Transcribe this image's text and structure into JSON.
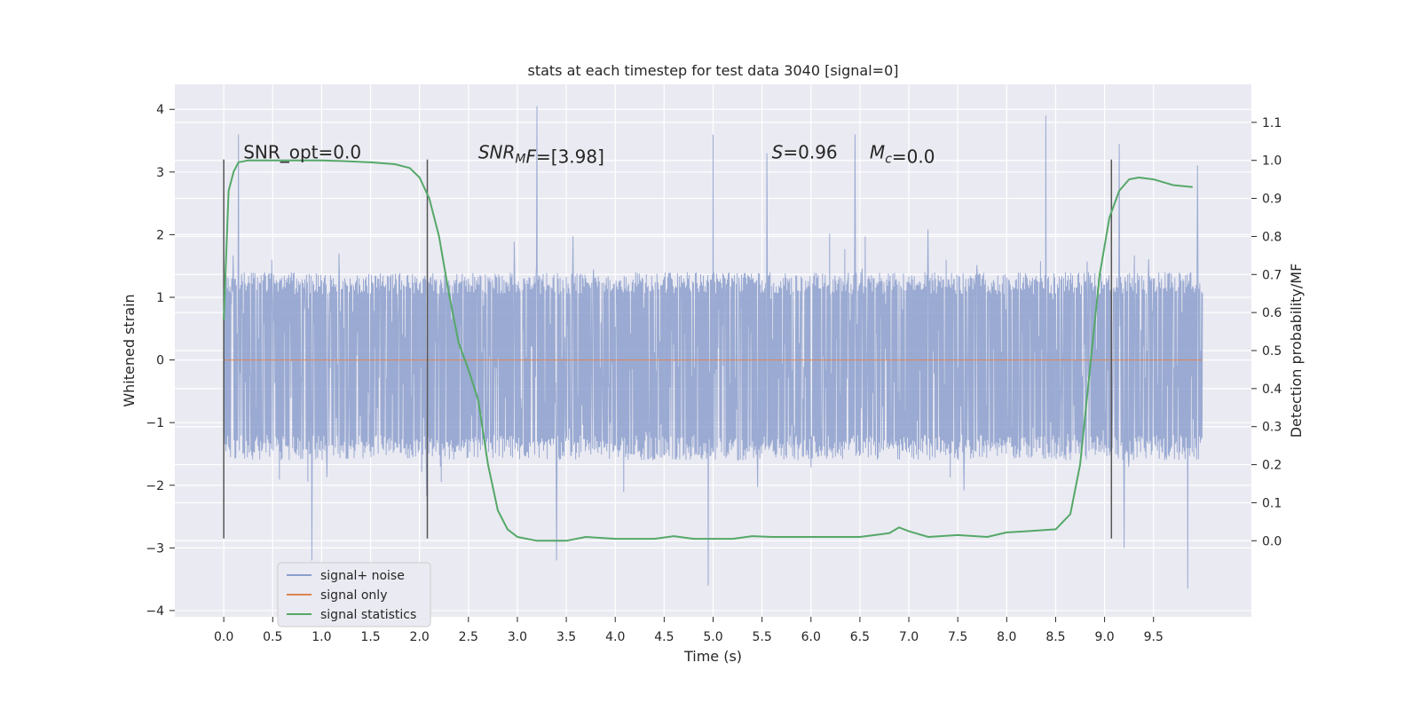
{
  "chart_data": {
    "type": "line",
    "title": "stats at each timestep for test data 3040 [signal=0]",
    "xlabel": "Time (s)",
    "ylabel": "Whitened strain",
    "y2label": "Detection probability/MF",
    "xlim": [
      -0.5,
      10.5
    ],
    "ylim": [
      -4.1,
      4.4
    ],
    "y2lim": [
      -0.2,
      1.2
    ],
    "x_ticks": [
      0.0,
      0.5,
      1.0,
      1.5,
      2.0,
      2.5,
      3.0,
      3.5,
      4.0,
      4.5,
      5.0,
      5.5,
      6.0,
      6.5,
      7.0,
      7.5,
      8.0,
      8.5,
      9.0,
      9.5
    ],
    "x_tick_labels": [
      "0.0",
      "0.5",
      "1.0",
      "1.5",
      "2.0",
      "2.5",
      "3.0",
      "3.5",
      "4.0",
      "4.5",
      "5.0",
      "5.5",
      "6.0",
      "6.5",
      "7.0",
      "7.5",
      "8.0",
      "8.5",
      "9.0",
      "9.5"
    ],
    "y_ticks": [
      4,
      3,
      2,
      1,
      0,
      -1,
      -2,
      -3,
      -4
    ],
    "y_tick_labels": [
      "4",
      "3",
      "2",
      "1",
      "0",
      "−1",
      "−2",
      "−3",
      "−4"
    ],
    "y2_ticks": [
      1.1,
      1.0,
      0.9,
      0.8,
      0.7,
      0.6,
      0.5,
      0.4,
      0.3,
      0.2,
      0.1,
      0.0
    ],
    "y2_tick_labels": [
      "1.1",
      "1.0",
      "0.9",
      "0.8",
      "0.7",
      "0.6",
      "0.5",
      "0.4",
      "0.3",
      "0.2",
      "0.1",
      "0.0"
    ],
    "grid": true,
    "legend_position": "lower-left",
    "series": [
      {
        "name": "signal+ noise",
        "color": "#8c9fcc",
        "axis": "left",
        "x_range": [
          0.0,
          10.0
        ],
        "envelope": {
          "typical_upper": 1.4,
          "typical_lower": -1.6,
          "max": 4.05,
          "min": -3.6
        },
        "notable_peaks": [
          {
            "x": 0.15,
            "y": 3.6
          },
          {
            "x": 3.2,
            "y": 4.05
          },
          {
            "x": 5.0,
            "y": 3.6
          },
          {
            "x": 6.45,
            "y": 3.6
          },
          {
            "x": 8.4,
            "y": 3.9
          },
          {
            "x": 9.15,
            "y": 3.45
          },
          {
            "x": 9.95,
            "y": 3.1
          },
          {
            "x": 5.55,
            "y": 3.3
          }
        ],
        "notable_troughs": [
          {
            "x": 0.9,
            "y": -3.2
          },
          {
            "x": 3.4,
            "y": -3.2
          },
          {
            "x": 4.95,
            "y": -3.6
          },
          {
            "x": 9.85,
            "y": -3.65
          },
          {
            "x": 9.2,
            "y": -3.0
          }
        ]
      },
      {
        "name": "signal only",
        "color": "#dd8452",
        "axis": "left",
        "x": [
          0.0,
          10.0
        ],
        "y": [
          0.0,
          0.0
        ]
      },
      {
        "name": "signal statistics",
        "color": "#55a868",
        "axis": "right",
        "x": [
          0.0,
          0.05,
          0.1,
          0.15,
          0.25,
          0.5,
          0.75,
          1.0,
          1.25,
          1.5,
          1.75,
          1.9,
          2.0,
          2.1,
          2.2,
          2.3,
          2.4,
          2.5,
          2.6,
          2.7,
          2.8,
          2.9,
          3.0,
          3.2,
          3.5,
          3.7,
          4.0,
          4.4,
          4.6,
          4.8,
          5.0,
          5.2,
          5.4,
          5.6,
          6.0,
          6.5,
          6.8,
          6.9,
          7.0,
          7.2,
          7.5,
          7.8,
          8.0,
          8.2,
          8.5,
          8.65,
          8.75,
          8.85,
          8.95,
          9.05,
          9.15,
          9.25,
          9.35,
          9.5,
          9.7,
          9.9
        ],
        "y": [
          0.58,
          0.92,
          0.97,
          0.995,
          1.0,
          1.0,
          1.0,
          1.0,
          0.998,
          0.995,
          0.99,
          0.98,
          0.955,
          0.9,
          0.8,
          0.65,
          0.52,
          0.45,
          0.37,
          0.2,
          0.08,
          0.03,
          0.01,
          0.0,
          0.0,
          0.01,
          0.005,
          0.005,
          0.012,
          0.005,
          0.005,
          0.005,
          0.012,
          0.01,
          0.01,
          0.01,
          0.02,
          0.035,
          0.025,
          0.01,
          0.015,
          0.01,
          0.022,
          0.025,
          0.03,
          0.07,
          0.2,
          0.45,
          0.7,
          0.85,
          0.92,
          0.95,
          0.955,
          0.95,
          0.935,
          0.93
        ]
      }
    ],
    "vertical_lines": [
      {
        "x": 0.0,
        "y_range": [
          -2.85,
          3.2
        ],
        "color": "#555555"
      },
      {
        "x": 2.08,
        "y_range": [
          -2.85,
          3.2
        ],
        "color": "#555555"
      },
      {
        "x": 9.07,
        "y_range": [
          -2.85,
          3.2
        ],
        "color": "#555555"
      }
    ],
    "annotations": [
      {
        "x": 0.2,
        "y": 3.22,
        "parts": [
          {
            "t": "SNR_opt=0.0"
          }
        ]
      },
      {
        "x": 2.6,
        "y": 3.22,
        "parts": [
          {
            "t": "SNR",
            "i": true
          },
          {
            "t": "M",
            "i": true,
            "sub": true
          },
          {
            "t": "F",
            "i": true
          },
          {
            "t": "=[3.98]"
          }
        ]
      },
      {
        "x": 5.6,
        "y": 3.22,
        "parts": [
          {
            "t": "S",
            "i": true
          },
          {
            "t": "=0.96"
          }
        ]
      },
      {
        "x": 6.6,
        "y": 3.22,
        "parts": [
          {
            "t": "M",
            "i": true
          },
          {
            "t": "c",
            "i": true,
            "sub": true
          },
          {
            "t": "=0.0"
          }
        ]
      }
    ]
  }
}
